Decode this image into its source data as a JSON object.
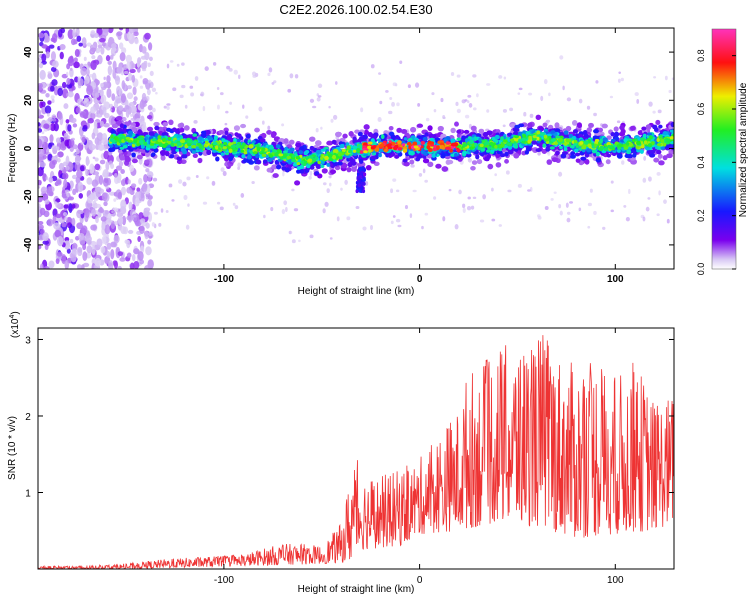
{
  "figure_title": "C2E2.2026.100.02.54.E30",
  "colors": {
    "trace": "#ee3333",
    "axis": "#000000",
    "background": "#ffffff"
  },
  "chart_data": [
    {
      "type": "heatmap",
      "title": "C2E2.2026.100.02.54.E30",
      "xlabel": "Height of straight line (km)",
      "ylabel": "Frequency (Hz)",
      "xlim": [
        -195,
        130
      ],
      "ylim": [
        -50,
        50
      ],
      "xticks": [
        -100,
        0,
        100
      ],
      "xtick_labels": [
        "-100",
        "0",
        "100"
      ],
      "yticks": [
        -40,
        -20,
        0,
        20,
        40
      ],
      "ytick_labels": [
        "-40",
        "-20",
        "0",
        "20",
        "40"
      ],
      "colorbar": {
        "label": "Normalized spectral amplitude",
        "range": [
          0,
          0.9
        ],
        "ticks": [
          0.0,
          0.2,
          0.4,
          0.6,
          0.8
        ],
        "tick_labels": [
          "0.0",
          "0.2",
          "0.4",
          "0.6",
          "0.8"
        ],
        "colormap": "rainbow (white-violet-blue-cyan-green-yellow-red-magenta)"
      },
      "ridge_center_hz": [
        [
          -160,
          4
        ],
        [
          -140,
          3
        ],
        [
          -120,
          2
        ],
        [
          -100,
          1
        ],
        [
          -80,
          -1
        ],
        [
          -60,
          -5
        ],
        [
          -50,
          -4
        ],
        [
          -40,
          -2
        ],
        [
          -30,
          0
        ],
        [
          -20,
          1
        ],
        [
          0,
          1
        ],
        [
          20,
          1
        ],
        [
          40,
          2
        ],
        [
          60,
          5
        ],
        [
          80,
          2
        ],
        [
          100,
          1
        ],
        [
          130,
          4
        ]
      ],
      "features": {
        "broadband_noise_region_km": [
          -195,
          -145
        ],
        "peak_amplitude_region_km": [
          -30,
          20
        ],
        "secondary_blob": {
          "x_km": -30,
          "frequency_hz": -13
        }
      }
    },
    {
      "type": "line",
      "xlabel": "Height of straight line (km)",
      "ylabel": "SNR (10 * v/v)",
      "y_multiplier": "(x10",
      "y_multiplier_exp": "4",
      "y_multiplier_close": ")",
      "xlim": [
        -195,
        130
      ],
      "ylim": [
        0,
        3.15
      ],
      "xticks": [
        -100,
        0,
        100
      ],
      "xtick_labels": [
        "-100",
        "0",
        "100"
      ],
      "yticks": [
        1,
        2,
        3
      ],
      "ytick_labels": [
        "1",
        "2",
        "3"
      ],
      "series": [
        {
          "name": "SNR",
          "color": "#ee3333",
          "envelope_upper": [
            [
              -195,
              0.04
            ],
            [
              -170,
              0.04
            ],
            [
              -150,
              0.07
            ],
            [
              -130,
              0.13
            ],
            [
              -110,
              0.16
            ],
            [
              -90,
              0.19
            ],
            [
              -80,
              0.27
            ],
            [
              -70,
              0.33
            ],
            [
              -60,
              0.33
            ],
            [
              -50,
              0.3
            ],
            [
              -40,
              0.6
            ],
            [
              -33,
              1.55
            ],
            [
              -30,
              1.25
            ],
            [
              -20,
              1.22
            ],
            [
              -10,
              1.3
            ],
            [
              0,
              1.45
            ],
            [
              10,
              1.8
            ],
            [
              20,
              2.1
            ],
            [
              25,
              2.65
            ],
            [
              30,
              2.6
            ],
            [
              40,
              2.95
            ],
            [
              50,
              2.9
            ],
            [
              60,
              3.1
            ],
            [
              65,
              3.15
            ],
            [
              70,
              2.85
            ],
            [
              80,
              2.65
            ],
            [
              90,
              2.8
            ],
            [
              100,
              2.5
            ],
            [
              110,
              2.75
            ],
            [
              120,
              2.2
            ],
            [
              130,
              2.3
            ]
          ],
          "envelope_lower": [
            [
              -195,
              0.0
            ],
            [
              -150,
              0.0
            ],
            [
              -120,
              0.02
            ],
            [
              -90,
              0.04
            ],
            [
              -60,
              0.06
            ],
            [
              -40,
              0.08
            ],
            [
              -35,
              0.1
            ],
            [
              -30,
              0.25
            ],
            [
              -10,
              0.3
            ],
            [
              0,
              0.45
            ],
            [
              20,
              0.5
            ],
            [
              40,
              0.6
            ],
            [
              60,
              0.55
            ],
            [
              80,
              0.4
            ],
            [
              100,
              0.45
            ],
            [
              120,
              0.5
            ],
            [
              130,
              0.6
            ]
          ]
        }
      ]
    }
  ]
}
